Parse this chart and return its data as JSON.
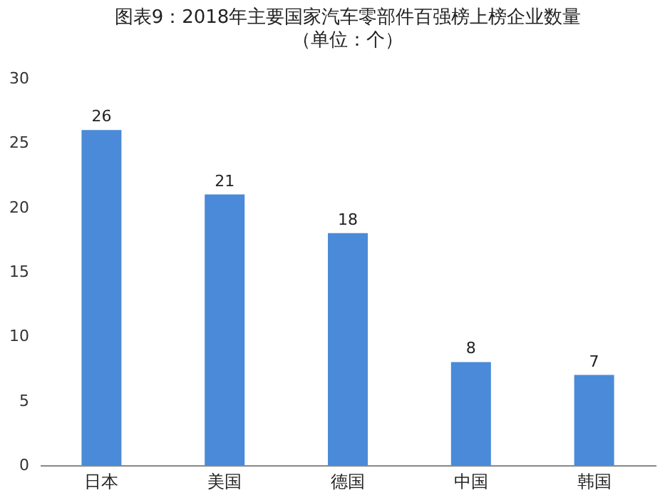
{
  "chart_data": {
    "type": "bar",
    "title": "图表9：2018年主要国家汽车零部件百强榜上榜企业数量",
    "subtitle": "（单位：个）",
    "categories": [
      "日本",
      "美国",
      "德国",
      "中国",
      "韩国"
    ],
    "values": [
      26,
      21,
      18,
      8,
      7
    ],
    "color": "#4a8ad8",
    "ylim": [
      0,
      30
    ],
    "yticks": [
      0,
      5,
      10,
      15,
      20,
      25,
      30
    ],
    "data_labels": true
  }
}
